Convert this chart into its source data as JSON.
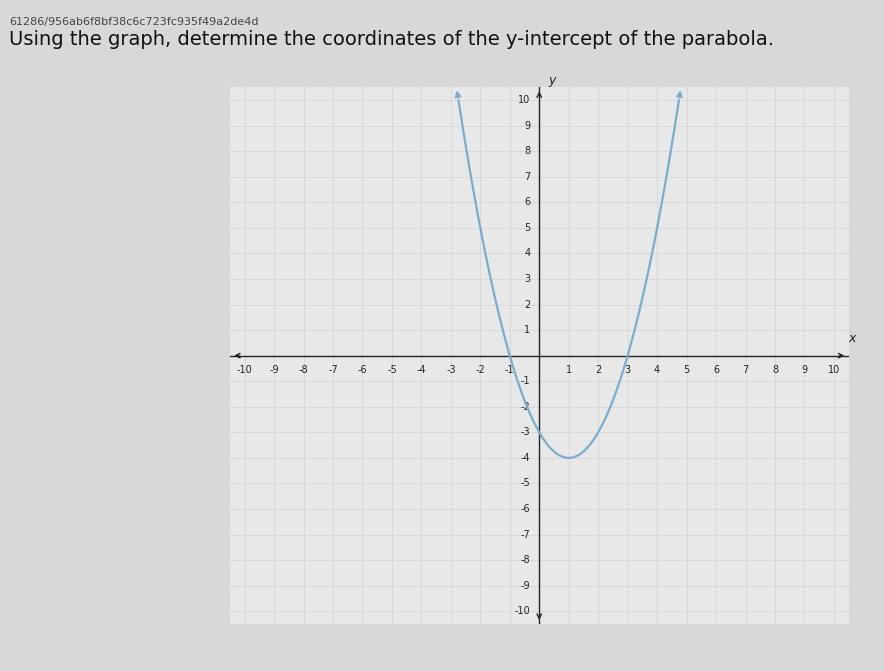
{
  "title": "Using the graph, determine the coordinates of the y-intercept of the parabola.",
  "header": "61286/956ab6f8bf38c6c723fc935f49a2de4d",
  "parabola_a": 1,
  "parabola_b": -2,
  "parabola_c": -3,
  "xmin": -10,
  "xmax": 10,
  "ymin": -10,
  "ymax": 10,
  "curve_color": "#7aadcc",
  "curve_linewidth": 1.6,
  "axis_color": "#222222",
  "grid_color": "#cccccc",
  "grid_linewidth": 0.4,
  "background_color": "#d8d8d8",
  "plot_bg_color": "#e8e8e8",
  "tick_fontsize": 7,
  "title_fontsize": 14,
  "header_fontsize": 8
}
